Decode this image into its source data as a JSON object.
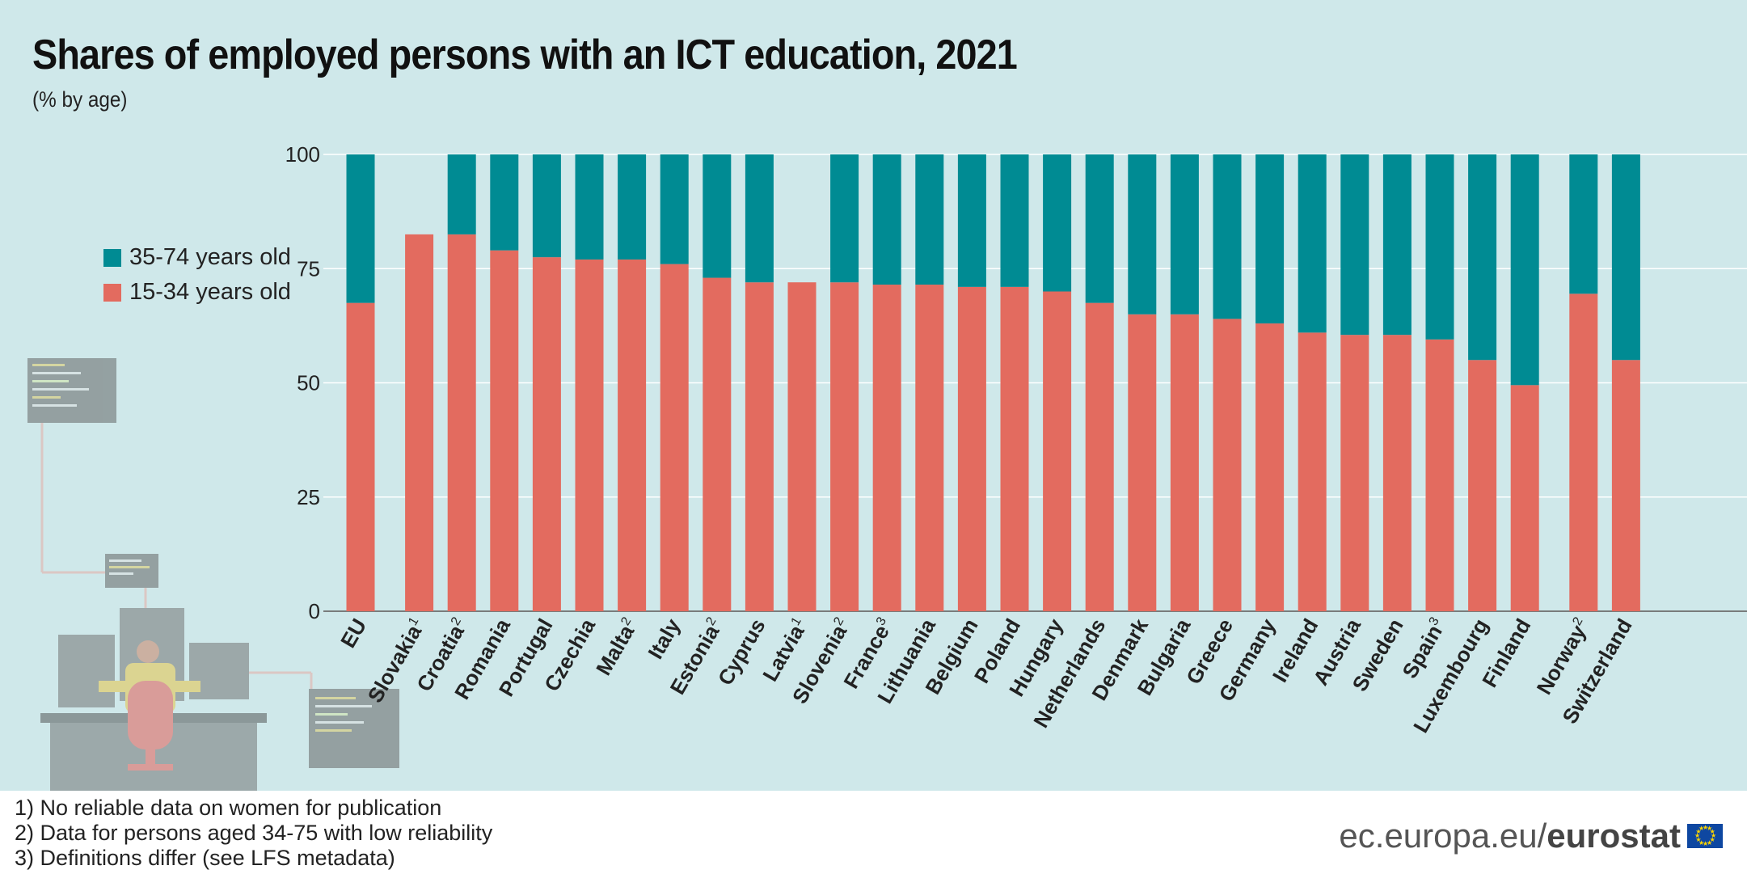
{
  "header": {
    "title": "Shares of employed persons with an ICT education, 2021",
    "subtitle": "(% by age)"
  },
  "legend": {
    "items": [
      {
        "label": "35-74 years old",
        "color": "#008b93"
      },
      {
        "label": "15-34 years old",
        "color": "#e36b5f"
      }
    ],
    "placement": "left"
  },
  "footnotes": [
    "1) No reliable data on women for publication",
    "2) Data for persons aged 34-75 with low reliability",
    "3) Definitions differ (see LFS metadata)"
  ],
  "branding": {
    "url_prefix": "ec.europa.eu/",
    "name": "eurostat",
    "flag_icon": "eu-flag-icon"
  },
  "illustration_icon": "person-at-computers-icon",
  "chart_data": {
    "type": "bar",
    "stacked": true,
    "title": "Shares of employed persons with an ICT education, 2021",
    "subtitle": "(% by age)",
    "xlabel": "",
    "ylabel": "",
    "ylim": [
      0,
      100
    ],
    "yticks": [
      "0",
      "25",
      "50",
      "75",
      "100"
    ],
    "grid": true,
    "categories": [
      "EU",
      "Slovakia",
      "Croatia",
      "Romania",
      "Portugal",
      "Czechia",
      "Malta",
      "Italy",
      "Estonia",
      "Cyprus",
      "Latvia",
      "Slovenia",
      "France",
      "Lithuania",
      "Belgium",
      "Poland",
      "Hungary",
      "Netherlands",
      "Denmark",
      "Bulgaria",
      "Greece",
      "Germany",
      "Ireland",
      "Austria",
      "Sweden",
      "Spain",
      "Luxembourg",
      "Finland",
      "Norway",
      "Switzerland"
    ],
    "footnote_marks": [
      "",
      "1",
      "2",
      "",
      "",
      "",
      "2",
      "",
      "2",
      "",
      "1",
      "2",
      "3",
      "",
      "",
      "",
      "",
      "",
      "",
      "",
      "",
      "",
      "",
      "",
      "",
      "3",
      "",
      "",
      "2",
      ""
    ],
    "group_gap_after": [
      "EU",
      "Finland"
    ],
    "series": [
      {
        "name": "15-34 years old",
        "color": "#e36b5f",
        "values": [
          67.5,
          82.5,
          82.5,
          79,
          77.5,
          77,
          77,
          76,
          73,
          72,
          72,
          72,
          71.5,
          71.5,
          71,
          71,
          70,
          67.5,
          65,
          65,
          64,
          63,
          61,
          60.5,
          60.5,
          59.5,
          55,
          49.5,
          69.5,
          55
        ]
      },
      {
        "name": "35-74 years old",
        "color": "#008b93",
        "values": [
          32.5,
          null,
          17.5,
          21,
          22.5,
          23,
          23,
          24,
          27,
          28,
          null,
          28,
          28.5,
          28.5,
          29,
          29,
          30,
          32.5,
          35,
          35,
          36,
          37,
          39,
          39.5,
          39.5,
          40.5,
          45,
          50.5,
          30.5,
          45
        ]
      }
    ]
  }
}
